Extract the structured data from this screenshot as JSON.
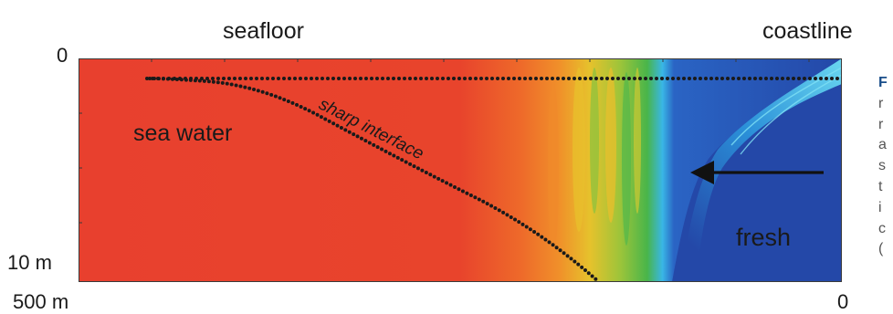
{
  "header": {
    "left_label": "seafloor",
    "right_label": "coastline"
  },
  "axes": {
    "depth_top": "0",
    "depth_bottom": "10 m",
    "distance_left": "500 m",
    "distance_right": "0"
  },
  "annotations": {
    "sea_water": "sea water",
    "sharp_interface": "sharp interface",
    "fresh": "fresh"
  },
  "colors": {
    "sea_water": "#e8402e",
    "fresh": "#2448a8",
    "transition_orange": "#f07a2a",
    "transition_yellow": "#e7c12a",
    "transition_green": "#49b54a",
    "transition_cyan": "#39b6e6"
  },
  "caption_fragment": [
    "F",
    "r",
    "r",
    "a",
    "s",
    "t",
    "i",
    "c",
    "("
  ]
}
